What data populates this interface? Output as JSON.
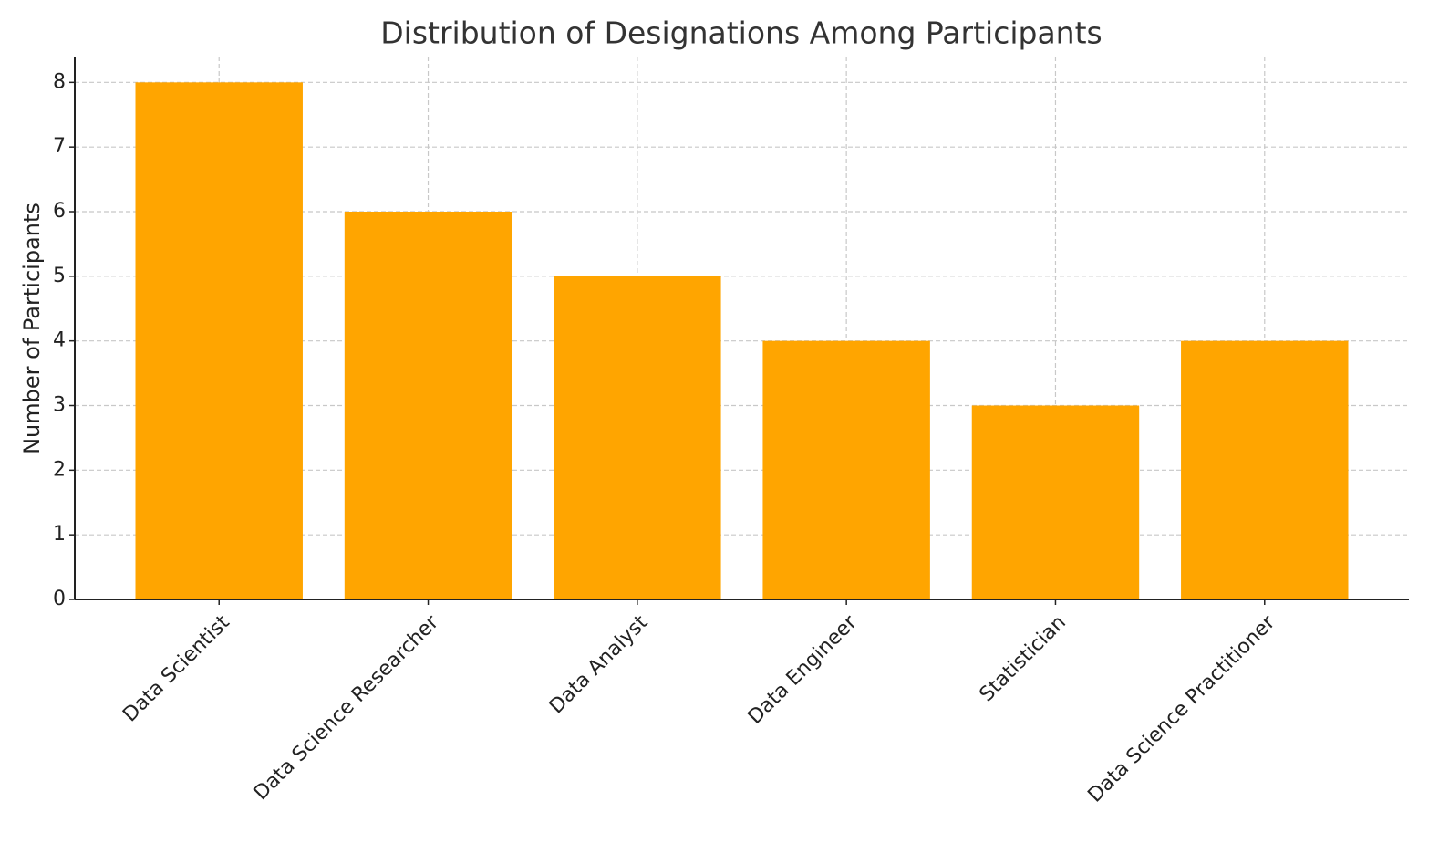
{
  "chart_data": {
    "type": "bar",
    "title": "Distribution of Designations Among Participants",
    "y_label": "Number of Participants",
    "categories": [
      "Data Scientist",
      "Data Science Researcher",
      "Data Analyst",
      "Data Engineer",
      "Statistician",
      "Data Science Practitioner"
    ],
    "values": [
      8,
      6,
      5,
      4,
      3,
      4
    ],
    "color": "#ffa500",
    "ylim": [
      0,
      8.4
    ],
    "yticks": [
      0,
      1,
      2,
      3,
      4,
      5,
      6,
      7,
      8
    ],
    "grid": true
  }
}
